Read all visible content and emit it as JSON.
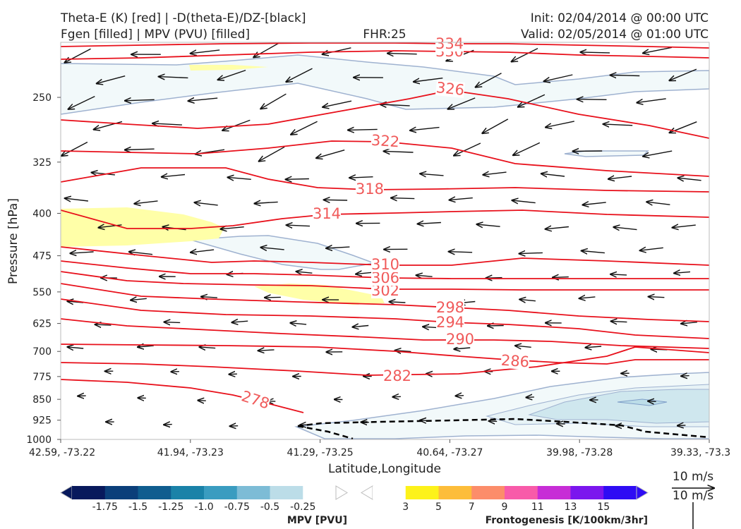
{
  "header": {
    "title_line1": "Theta-E (K) [red] | -D(theta-E)/DZ-[black]",
    "title_line2": "Fgen [filled] | MPV (PVU) [filled]",
    "fhr": "FHR:25",
    "init": "Init: 02/04/2014 @ 00:00 UTC",
    "valid": "Valid: 02/05/2014 @ 01:00 UTC"
  },
  "chart_data": {
    "type": "cross-section",
    "xlabel": "Latitude,Longitude",
    "ylabel": "Pressure [hPa]",
    "y_scale": "log",
    "y_range_hpa": [
      1000,
      200
    ],
    "y_ticks": [
      250,
      325,
      400,
      475,
      550,
      625,
      700,
      775,
      850,
      925,
      1000
    ],
    "x_ticks": [
      "42.59, -73.22",
      "41.94, -73.23",
      "41.29, -73.25",
      "40.64, -73.27",
      "39.98, -73.28",
      "39.33, -73.3"
    ],
    "theta_e_contours": [
      {
        "label": "278",
        "color": "#e8101b"
      },
      {
        "label": "282",
        "color": "#e8101b"
      },
      {
        "label": "286",
        "color": "#e8101b"
      },
      {
        "label": "290",
        "color": "#e8101b"
      },
      {
        "label": "294",
        "color": "#e8101b"
      },
      {
        "label": "298",
        "color": "#e8101b"
      },
      {
        "label": "302",
        "color": "#e8101b"
      },
      {
        "label": "306",
        "color": "#e8101b"
      },
      {
        "label": "310",
        "color": "#e8101b"
      },
      {
        "label": "314",
        "color": "#e8101b"
      },
      {
        "label": "318",
        "color": "#e8101b"
      },
      {
        "label": "322",
        "color": "#e8101b"
      },
      {
        "label": "326",
        "color": "#e8101b"
      },
      {
        "label": "330",
        "color": "#e8101b"
      },
      {
        "label": "334",
        "color": "#e8101b"
      }
    ],
    "mpv_colorbar": {
      "label": "MPV [PVU]",
      "ticks": [
        "-1.75",
        "-1.5",
        "-1.25",
        "-1.0",
        "-0.75",
        "-0.5",
        "-0.25"
      ],
      "colors": [
        "#08195c",
        "#0b3f7a",
        "#0f5d8f",
        "#1a82a8",
        "#3a9cc0",
        "#7dbcd6",
        "#bcdde8",
        "#ffffff"
      ]
    },
    "fgen_colorbar": {
      "label": "Frontogenesis [K/100km/3hr]",
      "ticks": [
        "3",
        "5",
        "7",
        "9",
        "11",
        "13",
        "15"
      ],
      "colors": [
        "#ffffff",
        "#fdf21a",
        "#fdbd3a",
        "#fc8d6a",
        "#f85ba9",
        "#c72dd6",
        "#7b16ee",
        "#2e0cf4"
      ]
    },
    "wind_key": {
      "label": "10 m/s"
    }
  }
}
